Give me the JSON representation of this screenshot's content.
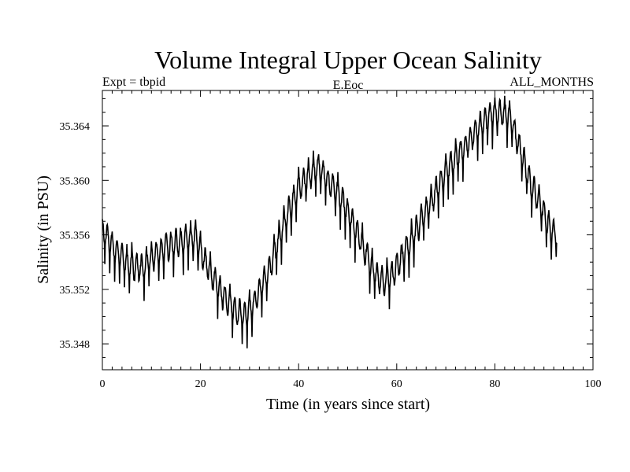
{
  "chart_data": {
    "type": "line",
    "title": "Volume Integral Upper Ocean Salinity",
    "subtitle_left": "Expt = tbpid",
    "subtitle_center": "E.Eoc",
    "subtitle_right": "ALL_MONTHS",
    "xlabel": "Time (in years since start)",
    "ylabel": "Salinity (in PSU)",
    "xlim": [
      0,
      100
    ],
    "ylim": [
      35.3461,
      35.3666
    ],
    "x_ticks": [
      0,
      20,
      40,
      60,
      80,
      100
    ],
    "x_tick_labels": [
      "0",
      "20",
      "40",
      "60",
      "80",
      "100"
    ],
    "y_ticks": [
      35.348,
      35.352,
      35.356,
      35.36,
      35.364
    ],
    "y_tick_labels": [
      "35.348",
      "35.352",
      "35.356",
      "35.360",
      "35.364"
    ],
    "grid": false,
    "series": [
      {
        "name": "Salinity",
        "trend_years": [
          0,
          2,
          5,
          8,
          10,
          13,
          16,
          19,
          21,
          24,
          27,
          29,
          31,
          34,
          37,
          40,
          42,
          44,
          46,
          49,
          52,
          55,
          57,
          59,
          62,
          65,
          68,
          71,
          74,
          77,
          80,
          83,
          85,
          87,
          89,
          91,
          92.7
        ],
        "trend_values": [
          35.3563,
          35.3552,
          35.3539,
          35.3535,
          35.3542,
          35.3551,
          35.3555,
          35.3558,
          35.354,
          35.3518,
          35.3505,
          35.35,
          35.351,
          35.3535,
          35.3568,
          35.3595,
          35.3603,
          35.361,
          35.36,
          35.3585,
          35.3562,
          35.3535,
          35.3525,
          35.353,
          35.355,
          35.357,
          35.3592,
          35.3612,
          35.3625,
          35.364,
          35.365,
          35.3647,
          35.3625,
          35.36,
          35.3585,
          35.3565,
          35.356
        ],
        "start_year": 0,
        "end_year": 92.7,
        "samples_per_year": 12,
        "peak_to_peak_psu": 0.0033
      }
    ]
  }
}
